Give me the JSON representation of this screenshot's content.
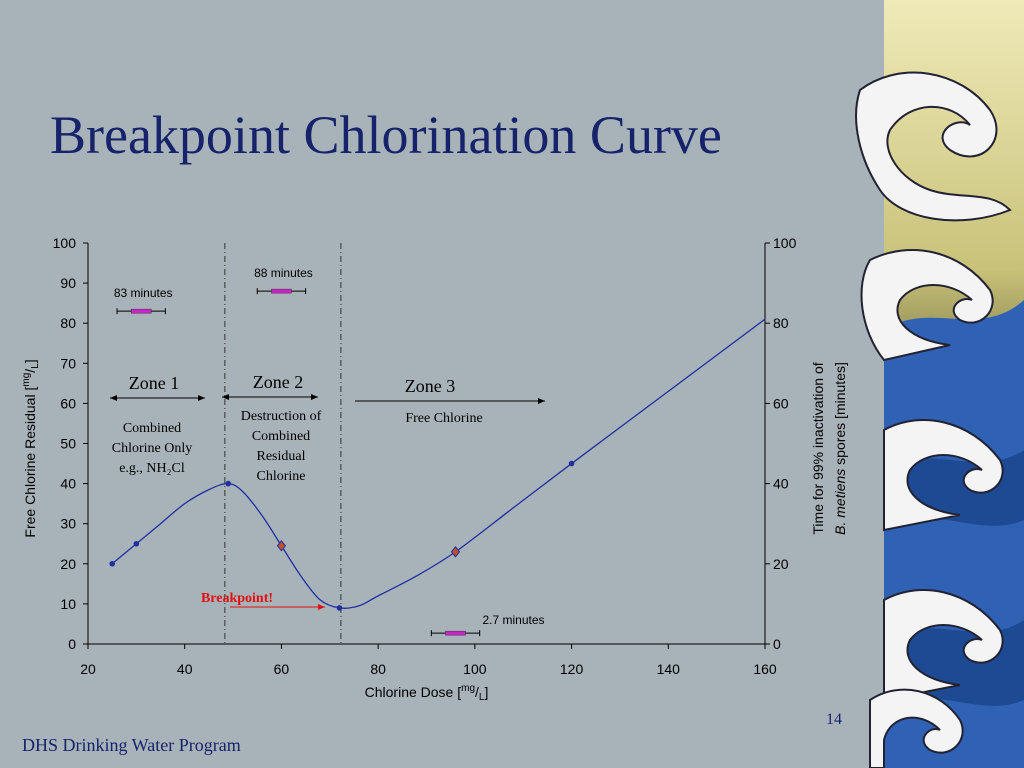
{
  "chart_data": {
    "type": "line",
    "title": "Breakpoint Chlorination Curve",
    "x_label": {
      "text": "Chlorine Dose [",
      "sup": "mg",
      "sep": "/",
      "sub": "L",
      "end": "]"
    },
    "y_label": {
      "text": "Free Chlorine Residual [",
      "sup": "mg",
      "sep": "/",
      "sub": "L",
      "end": "]"
    },
    "y2_label": {
      "line1": "Time for 99% inactivation of",
      "italic": "B. metiens",
      "rest": " spores [minutes]"
    },
    "xlim": [
      20,
      160
    ],
    "xticks": [
      20,
      40,
      60,
      80,
      100,
      120,
      140,
      160
    ],
    "ylim": [
      0,
      100
    ],
    "yticks": [
      0,
      10,
      20,
      30,
      40,
      50,
      60,
      70,
      80,
      90,
      100
    ],
    "y2lim": [
      0,
      100
    ],
    "y2ticks": [
      0,
      20,
      40,
      60,
      80,
      100
    ],
    "series": [
      {
        "style": "curve",
        "color": "#1f2fa0",
        "x": [
          25,
          30,
          35,
          40,
          45,
          49,
          52,
          56,
          60,
          64,
          68,
          72,
          76,
          80,
          88,
          96,
          108,
          120,
          140,
          160
        ],
        "values": [
          20,
          25,
          30,
          35,
          38.5,
          40,
          38,
          32,
          24.5,
          17,
          11,
          9,
          9.5,
          12,
          17,
          23,
          34,
          45,
          63,
          81
        ]
      },
      {
        "style": "dots",
        "color": "#1f2fa0",
        "x": [
          25,
          30,
          49,
          72,
          120
        ],
        "values": [
          20,
          25,
          40,
          9,
          45
        ]
      },
      {
        "style": "diamonds",
        "color": "#c0502a",
        "x": [
          60,
          96
        ],
        "values": [
          24.5,
          23
        ]
      },
      {
        "style": "errorbars",
        "axis": "y2",
        "color": "#d020d0",
        "x": [
          31,
          60,
          96
        ],
        "xerr": [
          5,
          5,
          5
        ],
        "values": [
          83,
          88,
          2.7
        ],
        "value_labels": [
          "83 minutes",
          "88 minutes",
          "2.7 minutes"
        ]
      }
    ],
    "vlines": [
      48.3,
      72.3
    ],
    "zones": [
      {
        "label": "Zone 1",
        "lines": [
          "Combined",
          "Chlorine Only",
          "e.g., NH₂Cl"
        ]
      },
      {
        "label": "Zone 2",
        "lines": [
          "Destruction of",
          "Combined",
          "Residual",
          "Chlorine"
        ]
      },
      {
        "label": "Zone 3",
        "lines": [
          "Free Chlorine"
        ]
      }
    ],
    "annotation": "Breakpoint!"
  },
  "footer": {
    "program": "DHS Drinking Water Program",
    "page": "14"
  }
}
